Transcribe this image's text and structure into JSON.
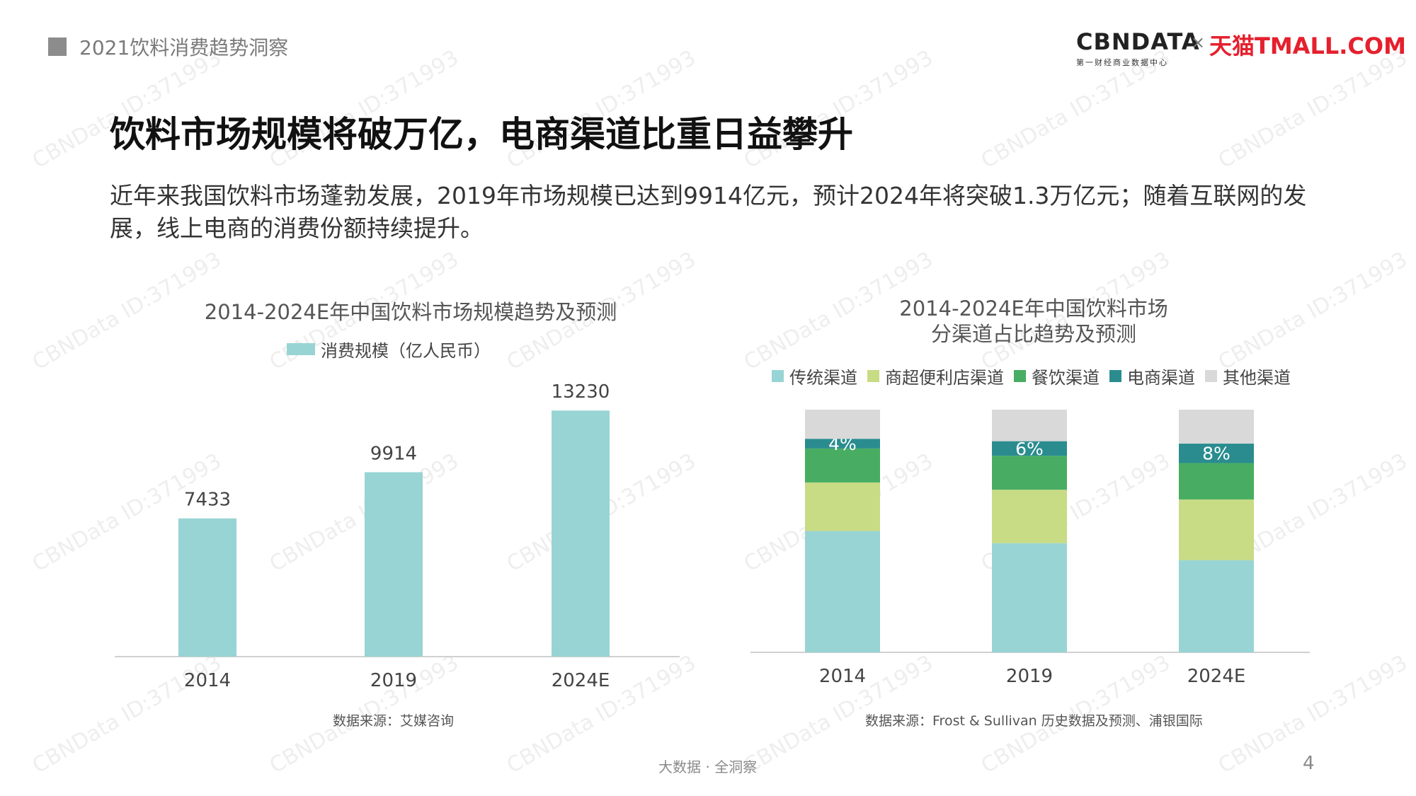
{
  "header": {
    "section_title": "2021饮料消费趋势洞察",
    "logo": {
      "cbndata": "CBNDATA",
      "cbndata_sub": "第一财经商业数据中心",
      "separator": "×",
      "tmall": "天猫TMALL.COM"
    }
  },
  "main": {
    "title": "饮料市场规模将破万亿，电商渠道比重日益攀升",
    "description": "近年来我国饮料市场蓬勃发展，2019年市场规模已达到9914亿元，预计2024年将突破1.3万亿元；随着互联网的发展，线上电商的消费份额持续提升。"
  },
  "colors": {
    "bar": "#98d4d4",
    "traditional": "#98d4d4",
    "convenience": "#c8db85",
    "catering": "#48ad62",
    "ecommerce": "#2a8c8f",
    "other": "#d9d9d9"
  },
  "chart_data": [
    {
      "type": "bar",
      "title": "2014-2024E年中国饮料市场规模趋势及预测",
      "categories": [
        "2014",
        "2019",
        "2024E"
      ],
      "series": [
        {
          "name": "消费规模（亿人民币）",
          "values": [
            7433,
            9914,
            13230
          ]
        }
      ],
      "data_labels": [
        "7433",
        "9914",
        "13230"
      ],
      "ylim": [
        0,
        14000
      ],
      "grid": false,
      "legend": "top",
      "source": "数据来源：艾媒咨询"
    },
    {
      "type": "bar",
      "stacked": true,
      "title": [
        "2014-2024E年中国饮料市场",
        "分渠道占比趋势及预测"
      ],
      "categories": [
        "2014",
        "2019",
        "2024E"
      ],
      "series": [
        {
          "name": "传统渠道",
          "values": [
            50,
            45,
            38
          ]
        },
        {
          "name": "商超便利店渠道",
          "values": [
            20,
            22,
            25
          ]
        },
        {
          "name": "餐饮渠道",
          "values": [
            14,
            14,
            15
          ]
        },
        {
          "name": "电商渠道",
          "values": [
            4,
            6,
            8
          ]
        },
        {
          "name": "其他渠道",
          "values": [
            12,
            13,
            14
          ]
        }
      ],
      "data_labels": {
        "电商渠道": [
          "4%",
          "6%",
          "8%"
        ]
      },
      "ylim": [
        0,
        100
      ],
      "grid": false,
      "legend": "top",
      "source": "数据来源：Frost & Sullivan 历史数据及预测、浦银国际"
    }
  ],
  "footer": {
    "tagline": "大数据 · 全洞察",
    "page": "4"
  },
  "watermark": "CBNData ID:371993"
}
